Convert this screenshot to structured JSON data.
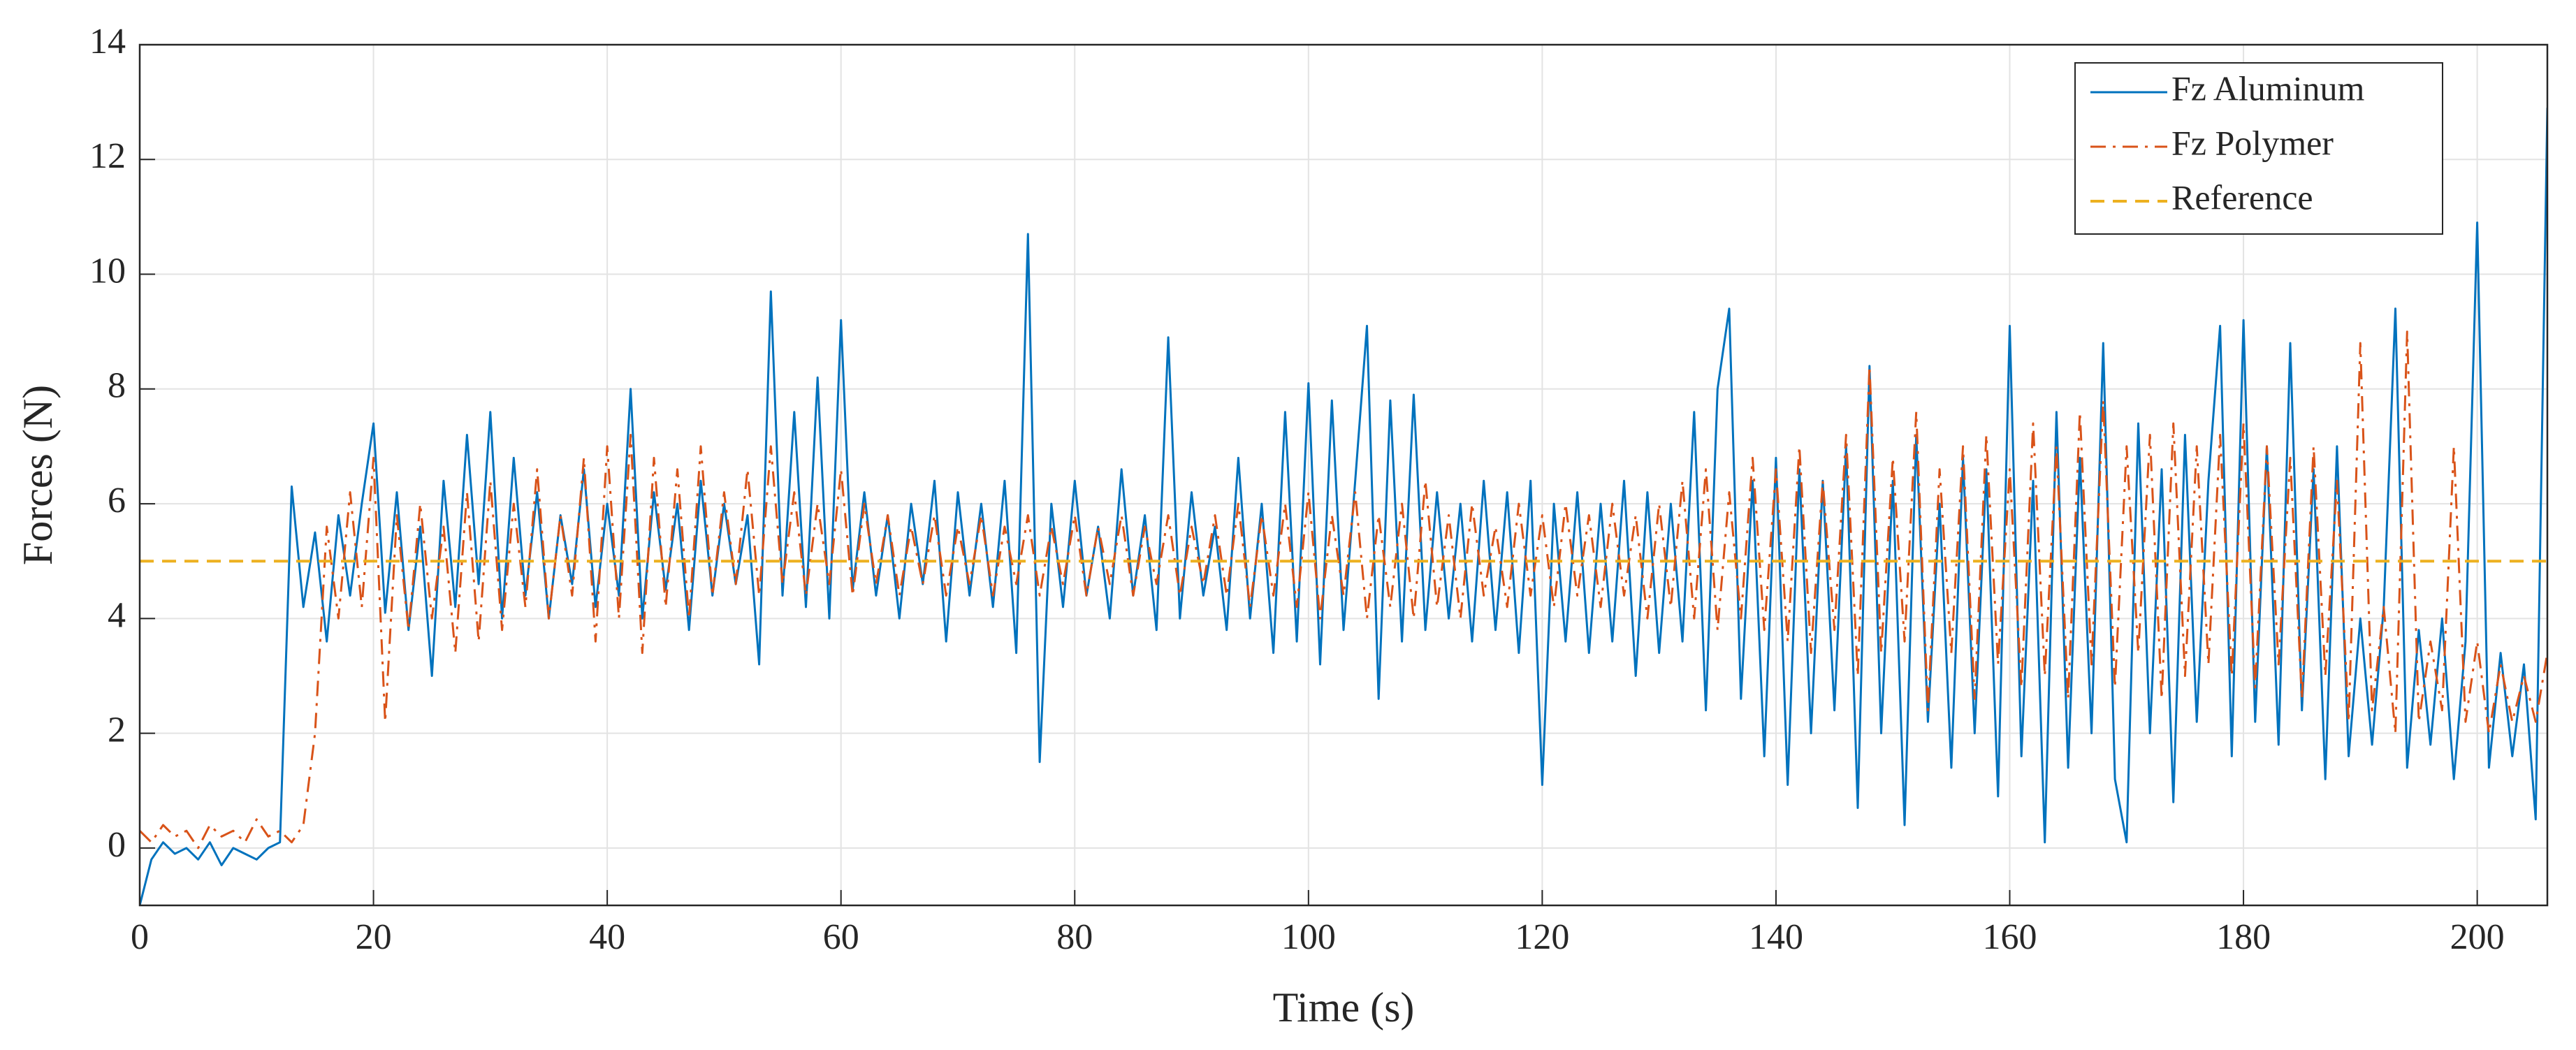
{
  "chart_data": {
    "type": "line",
    "xlabel": "Time (s)",
    "ylabel": "Forces (N)",
    "xlim": [
      0,
      206
    ],
    "xticks": [
      0,
      20,
      40,
      60,
      80,
      100,
      120,
      140,
      160,
      180,
      200
    ],
    "ylim": [
      -1,
      14
    ],
    "yticks": [
      0,
      2,
      4,
      6,
      8,
      10,
      12,
      14
    ],
    "grid": true,
    "legend": "upper right",
    "x": [
      0,
      1,
      2,
      3,
      4,
      5,
      6,
      7,
      8,
      9,
      10,
      11,
      12,
      13,
      14,
      15,
      16,
      17,
      18,
      19,
      20,
      21,
      22,
      23,
      24,
      25,
      26,
      27,
      28,
      29,
      30,
      31,
      32,
      33,
      34,
      35,
      36,
      37,
      38,
      39,
      40,
      41,
      42,
      43,
      44,
      45,
      46,
      47,
      48,
      49,
      50,
      51,
      52,
      53,
      54,
      55,
      56,
      57,
      58,
      59,
      60,
      61,
      62,
      63,
      64,
      65,
      66,
      67,
      68,
      69,
      70,
      71,
      72,
      73,
      74,
      75,
      76,
      77,
      78,
      79,
      80,
      81,
      82,
      83,
      84,
      85,
      86,
      87,
      88,
      89,
      90,
      91,
      92,
      93,
      94,
      95,
      96,
      97,
      98,
      99,
      100,
      101,
      102,
      103,
      104,
      105,
      106,
      107,
      108,
      109,
      110,
      111,
      112,
      113,
      114,
      115,
      116,
      117,
      118,
      119,
      120,
      121,
      122,
      123,
      124,
      125,
      126,
      127,
      128,
      129,
      130,
      131,
      132,
      133,
      134,
      135,
      136,
      137,
      138,
      139,
      140,
      141,
      142,
      143,
      144,
      145,
      146,
      147,
      148,
      149,
      150,
      151,
      152,
      153,
      154,
      155,
      156,
      157,
      158,
      159,
      160,
      161,
      162,
      163,
      164,
      165,
      166,
      167,
      168,
      169,
      170,
      171,
      172,
      173,
      174,
      175,
      176,
      177,
      178,
      179,
      180,
      181,
      182,
      183,
      184,
      185,
      186,
      187,
      188,
      189,
      190,
      191,
      192,
      193,
      194,
      195,
      196,
      197,
      198,
      199,
      200,
      201,
      202,
      203,
      204,
      205,
      206
    ],
    "series": [
      {
        "name": "Fz Aluminum",
        "color": "#0072bd",
        "style": "solid",
        "values": [
          -1.0,
          -0.2,
          0.1,
          -0.1,
          0.0,
          -0.2,
          0.1,
          -0.3,
          0.0,
          -0.1,
          -0.2,
          0.0,
          0.1,
          6.3,
          4.2,
          5.5,
          3.6,
          5.8,
          4.4,
          6.0,
          7.4,
          4.1,
          6.2,
          3.8,
          5.6,
          3.0,
          6.4,
          4.2,
          7.2,
          4.6,
          7.6,
          4.0,
          6.8,
          4.4,
          6.2,
          4.0,
          5.8,
          4.6,
          6.6,
          4.2,
          6.0,
          4.4,
          8.0,
          4.0,
          6.2,
          4.5,
          6.0,
          3.8,
          6.4,
          4.4,
          6.0,
          4.6,
          5.8,
          3.2,
          9.7,
          4.4,
          7.6,
          4.2,
          8.2,
          4.0,
          9.2,
          4.5,
          6.2,
          4.4,
          5.8,
          4.0,
          6.0,
          4.6,
          6.4,
          3.6,
          6.2,
          4.4,
          6.0,
          4.2,
          6.4,
          3.4,
          10.7,
          1.5,
          6.0,
          4.2,
          6.4,
          4.4,
          5.6,
          4.0,
          6.6,
          4.4,
          5.8,
          3.8,
          8.9,
          4.0,
          6.2,
          4.4,
          5.6,
          3.8,
          6.8,
          4.0,
          6.0,
          3.4,
          7.6,
          3.6,
          8.1,
          3.2,
          7.8,
          3.8,
          6.4,
          9.1,
          2.6,
          7.8,
          3.6,
          7.9,
          3.8,
          6.2,
          4.0,
          6.0,
          3.6,
          6.4,
          3.8,
          6.2,
          3.4,
          6.4,
          1.1,
          6.0,
          3.6,
          6.2,
          3.4,
          6.0,
          3.6,
          6.4,
          3.0,
          6.2,
          3.4,
          6.0,
          3.6,
          7.6,
          2.4,
          8.0,
          9.4,
          2.6,
          6.4,
          1.6,
          6.8,
          1.1,
          6.6,
          2.0,
          6.4,
          2.4,
          7.0,
          0.7,
          8.4,
          2.0,
          6.4,
          0.4,
          7.2,
          2.2,
          6.0,
          1.4,
          6.8,
          2.0,
          6.6,
          0.9,
          9.1,
          1.6,
          6.4,
          0.1,
          7.6,
          1.4,
          6.8,
          2.0,
          8.8,
          1.2,
          0.1,
          7.4,
          2.0,
          6.6,
          0.8,
          7.2,
          2.2,
          6.4,
          9.1,
          1.6,
          9.2,
          2.2,
          7.0,
          1.8,
          8.8,
          2.4,
          6.6,
          1.2,
          7.0,
          1.6,
          4.0,
          1.8,
          4.2,
          9.4,
          1.4,
          3.8,
          1.8,
          4.0,
          1.2,
          3.6,
          10.9,
          1.4,
          3.4,
          1.6,
          3.2,
          0.5,
          12.9
        ]
      },
      {
        "name": "Fz Polymer",
        "color": "#d95319",
        "style": "dashdot",
        "values": [
          0.3,
          0.1,
          0.4,
          0.2,
          0.3,
          0.0,
          0.4,
          0.2,
          0.3,
          0.1,
          0.5,
          0.2,
          0.3,
          0.1,
          0.4,
          2.0,
          5.6,
          4.0,
          6.2,
          4.2,
          6.8,
          2.2,
          5.8,
          3.8,
          6.0,
          4.0,
          5.6,
          3.4,
          6.2,
          3.6,
          6.4,
          3.8,
          6.0,
          4.2,
          6.6,
          4.0,
          5.8,
          4.4,
          6.8,
          3.6,
          7.0,
          4.0,
          7.2,
          3.4,
          6.8,
          4.2,
          6.6,
          4.0,
          7.0,
          4.4,
          6.2,
          4.6,
          6.6,
          4.4,
          7.0,
          4.6,
          6.2,
          4.4,
          6.0,
          4.6,
          6.6,
          4.4,
          6.0,
          4.6,
          5.8,
          4.4,
          5.6,
          4.6,
          5.8,
          4.4,
          5.6,
          4.6,
          5.8,
          4.4,
          5.6,
          4.6,
          5.8,
          4.4,
          5.6,
          4.6,
          5.8,
          4.4,
          5.6,
          4.6,
          5.8,
          4.4,
          5.6,
          4.6,
          5.8,
          4.4,
          5.6,
          4.6,
          5.8,
          4.4,
          6.0,
          4.2,
          5.8,
          4.4,
          6.0,
          4.2,
          6.2,
          4.0,
          5.8,
          4.4,
          6.2,
          4.0,
          5.8,
          4.2,
          6.0,
          4.0,
          6.4,
          4.2,
          5.8,
          4.0,
          6.0,
          4.4,
          5.6,
          4.2,
          6.0,
          4.4,
          5.8,
          4.2,
          6.0,
          4.4,
          5.8,
          4.2,
          6.0,
          4.4,
          5.8,
          4.0,
          6.0,
          4.2,
          6.4,
          4.0,
          6.6,
          3.8,
          6.2,
          4.0,
          6.8,
          3.8,
          6.6,
          3.6,
          7.0,
          3.4,
          6.4,
          3.8,
          7.2,
          3.0,
          8.4,
          3.4,
          6.8,
          3.6,
          7.6,
          2.4,
          6.6,
          3.4,
          7.0,
          2.6,
          7.2,
          3.2,
          6.6,
          2.8,
          7.4,
          3.0,
          7.0,
          2.6,
          7.6,
          3.2,
          7.8,
          2.8,
          7.0,
          3.4,
          7.2,
          2.6,
          7.4,
          3.0,
          7.0,
          3.2,
          7.2,
          3.0,
          7.4,
          2.8,
          7.0,
          3.2,
          6.8,
          2.6,
          7.0,
          3.0,
          6.4,
          2.2,
          8.8,
          2.4,
          4.2,
          2.0,
          9.0,
          2.2,
          3.6,
          2.4,
          7.0,
          2.2,
          3.6,
          2.0,
          3.2,
          2.2,
          3.0,
          2.2,
          3.4
        ]
      },
      {
        "name": "Reference",
        "color": "#edb120",
        "style": "dashed",
        "x": [
          0,
          206
        ],
        "values": [
          5,
          5
        ]
      }
    ]
  }
}
